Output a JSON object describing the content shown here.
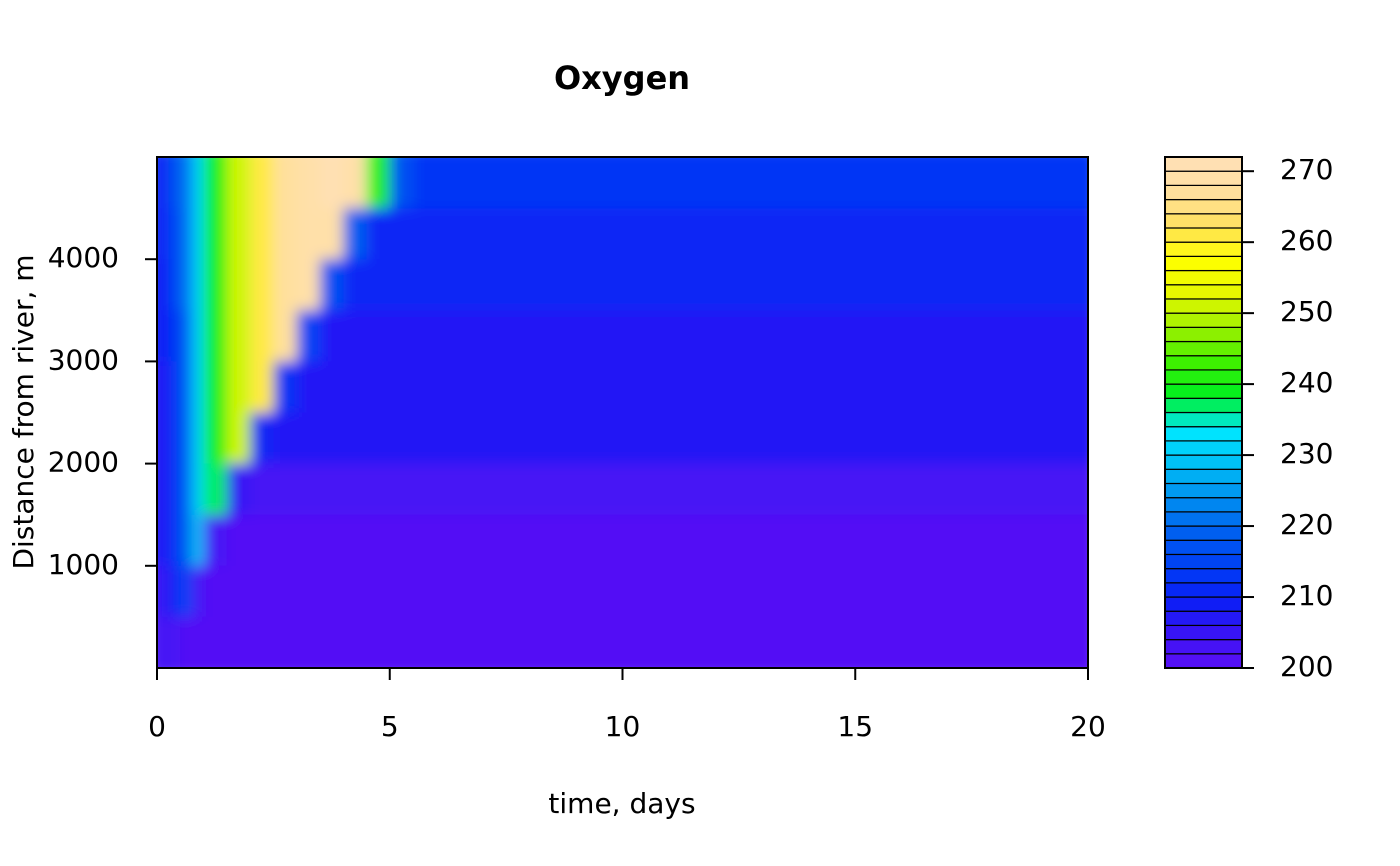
{
  "chart_data": {
    "type": "heatmap",
    "title": "Oxygen",
    "x_label": "time, days",
    "y_label": "Distance from river, m",
    "xlim": [
      0,
      20
    ],
    "ylim": [
      0,
      5000
    ],
    "xticks": [
      0,
      5,
      10,
      15,
      20
    ],
    "yticks": [
      1000,
      2000,
      3000,
      4000
    ],
    "xedges": [
      0,
      0.25,
      0.5,
      0.75,
      1,
      1.5,
      2,
      2.5,
      3,
      3.5,
      4,
      4.5,
      5,
      5.5,
      6,
      8,
      12,
      20
    ],
    "yedges": [
      0,
      500,
      1000,
      1500,
      2000,
      2500,
      3000,
      3500,
      4000,
      4500,
      5000
    ],
    "z": [
      [
        203,
        202,
        201,
        201,
        201,
        201,
        201,
        201,
        201,
        201,
        201,
        201,
        201,
        201,
        201,
        201,
        201
      ],
      [
        205,
        210,
        214,
        203,
        201,
        201,
        201,
        201,
        201,
        201,
        201,
        201,
        201,
        201,
        201,
        201,
        201
      ],
      [
        206,
        212,
        218,
        228,
        203,
        201,
        201,
        201,
        201,
        201,
        201,
        201,
        201,
        201,
        201,
        201,
        201
      ],
      [
        206,
        212,
        218,
        230,
        236,
        205,
        203,
        203,
        203,
        203,
        203,
        203,
        203,
        203,
        203,
        203,
        203
      ],
      [
        207,
        212,
        219,
        230,
        238,
        250,
        210,
        206,
        206,
        206,
        206,
        206,
        206,
        206,
        206,
        206,
        206
      ],
      [
        207,
        212,
        219,
        230,
        238,
        250,
        260,
        212,
        206,
        206,
        206,
        206,
        206,
        206,
        206,
        206,
        206
      ],
      [
        208,
        213,
        219,
        230,
        238,
        250,
        260,
        266,
        214,
        207,
        207,
        207,
        207,
        207,
        207,
        207,
        207
      ],
      [
        209,
        214,
        220,
        230,
        238,
        250,
        260,
        266,
        268,
        216,
        210,
        210,
        210,
        210,
        210,
        210,
        210
      ],
      [
        210,
        215,
        220,
        230,
        238,
        250,
        260,
        266,
        268,
        268,
        218,
        211,
        211,
        211,
        211,
        211,
        211
      ],
      [
        211,
        216,
        221,
        230,
        238,
        250,
        260,
        266,
        268,
        270,
        268,
        240,
        216,
        213,
        213,
        213,
        213
      ]
    ],
    "zlim": [
      200,
      272
    ],
    "zticks": [
      200,
      210,
      220,
      230,
      240,
      250,
      260,
      270
    ],
    "nlevels": 36,
    "palette": [
      "#5a0ff5",
      "#3a14f5",
      "#0a1ef5",
      "#0040f5",
      "#0060f0",
      "#0090f0",
      "#00c0f5",
      "#00e8ff",
      "#00f020",
      "#40f000",
      "#a0f000",
      "#e8f800",
      "#ffff00",
      "#ffe060",
      "#ffe0a0",
      "#ffe0b8"
    ]
  }
}
